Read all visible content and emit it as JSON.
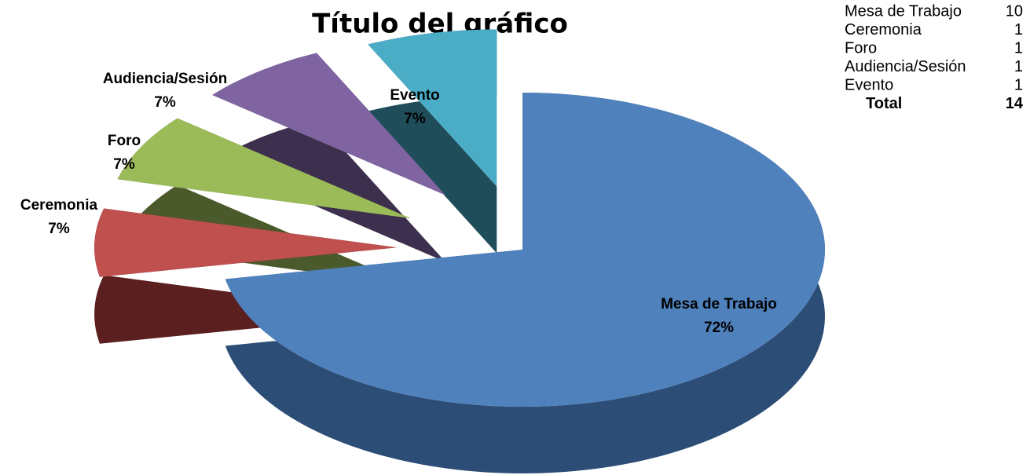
{
  "chart_data": {
    "type": "pie",
    "title": "Título del gráfico",
    "categories": [
      "Mesa de Trabajo",
      "Ceremonia",
      "Foro",
      "Audiencia/Sesión",
      "Evento"
    ],
    "values": [
      72,
      7,
      7,
      7,
      7
    ],
    "value_labels": [
      "72%",
      "7%",
      "7%",
      "7%",
      "7%"
    ],
    "colors": [
      "#4f81bd",
      "#c0504d",
      "#9bbb59",
      "#8064a2",
      "#4bacc6"
    ],
    "side_colors": [
      "#2c4d75",
      "#5a1f1e",
      "#4b5a2a",
      "#3d2f4e",
      "#1f4e5a"
    ]
  },
  "table": {
    "rows": [
      [
        "Mesa de Trabajo",
        10
      ],
      [
        "Ceremonia",
        1
      ],
      [
        "Foro",
        1
      ],
      [
        "Audiencia/Sesión",
        1
      ],
      [
        "Evento",
        1
      ]
    ],
    "total_label": "Total",
    "total": 14
  }
}
